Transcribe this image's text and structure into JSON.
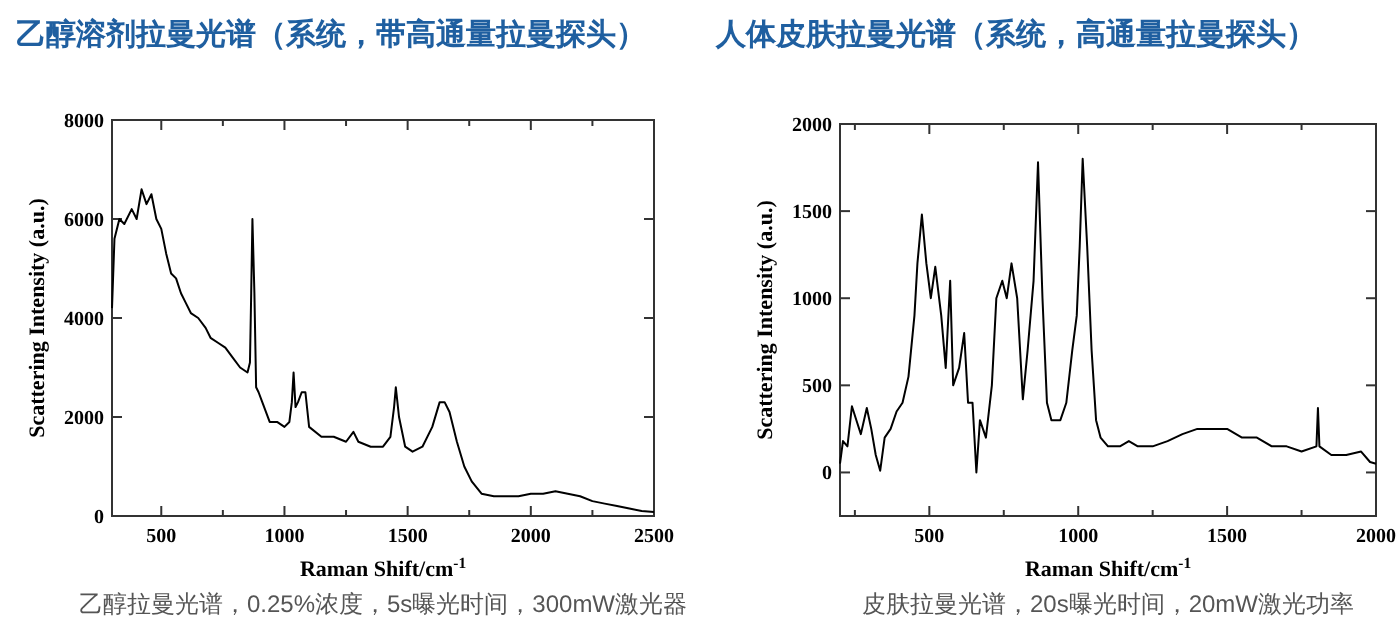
{
  "chart_data": [
    {
      "type": "line",
      "title": "乙醇溶剂拉曼光谱（系统，带高通量拉曼探头）",
      "xlabel": "Raman Shift/cm$^{-1}$",
      "ylabel": "Scattering Intensity (a.u.)",
      "annotations": [
        "乙醇拉曼光谱，0.25%浓度，5s曝光时间，300mW激光器"
      ],
      "xlim": [
        300,
        2500
      ],
      "ylim": [
        0,
        8000
      ],
      "xticks": [
        500,
        1000,
        1500,
        2000,
        2500,
        {
          "value": 750,
          "label": null
        },
        {
          "value": 1250,
          "label": null
        },
        {
          "value": 1750,
          "label": null
        },
        {
          "value": 2250,
          "label": null
        }
      ],
      "yticks": [
        0,
        2000,
        4000,
        6000,
        8000
      ],
      "x": [
        300,
        310,
        330,
        350,
        380,
        400,
        420,
        440,
        460,
        480,
        500,
        520,
        540,
        560,
        580,
        600,
        620,
        650,
        680,
        700,
        730,
        760,
        790,
        820,
        850,
        860,
        865,
        870,
        878,
        885,
        895,
        910,
        940,
        970,
        1000,
        1020,
        1030,
        1037,
        1045,
        1055,
        1070,
        1085,
        1100,
        1150,
        1200,
        1250,
        1280,
        1300,
        1350,
        1400,
        1430,
        1445,
        1452,
        1465,
        1490,
        1520,
        1560,
        1600,
        1630,
        1650,
        1670,
        1700,
        1730,
        1760,
        1800,
        1850,
        1900,
        1950,
        2000,
        2050,
        2100,
        2150,
        2200,
        2250,
        2300,
        2350,
        2400,
        2450,
        2500
      ],
      "series": [
        {
          "color": "#000000",
          "values": [
            4200,
            5600,
            6000,
            5900,
            6200,
            6000,
            6600,
            6300,
            6500,
            6000,
            5800,
            5300,
            4900,
            4800,
            4500,
            4300,
            4100,
            4000,
            3800,
            3600,
            3500,
            3400,
            3200,
            3000,
            2900,
            3100,
            4500,
            6000,
            4500,
            2600,
            2500,
            2300,
            1900,
            1900,
            1800,
            1900,
            2300,
            2900,
            2200,
            2300,
            2500,
            2500,
            1800,
            1600,
            1600,
            1500,
            1700,
            1500,
            1400,
            1400,
            1600,
            2200,
            2600,
            2000,
            1400,
            1300,
            1400,
            1800,
            2300,
            2300,
            2100,
            1500,
            1000,
            700,
            450,
            400,
            400,
            400,
            450,
            450,
            500,
            450,
            400,
            300,
            250,
            200,
            150,
            100,
            80
          ]
        }
      ]
    },
    {
      "type": "line",
      "title": "人体皮肤拉曼光谱（系统，高通量拉曼探头）",
      "xlabel": "Raman Shift/cm$^{-1}$",
      "ylabel": "Scattering Intensity (a.u.)",
      "annotations": [
        "皮肤拉曼光谱，20s曝光时间，20mW激光功率"
      ],
      "xlim": [
        200,
        2000
      ],
      "ylim": [
        -250,
        2000
      ],
      "xticks": [
        500,
        1000,
        1500,
        2000,
        {
          "value": 250,
          "label": null
        },
        {
          "value": 750,
          "label": null
        },
        {
          "value": 1250,
          "label": null
        },
        {
          "value": 1750,
          "label": null
        }
      ],
      "yticks": [
        0,
        500,
        1000,
        1500,
        2000
      ],
      "x": [
        200,
        210,
        225,
        240,
        255,
        270,
        290,
        305,
        320,
        335,
        350,
        370,
        390,
        410,
        430,
        450,
        460,
        475,
        490,
        505,
        520,
        540,
        555,
        570,
        580,
        600,
        617,
        630,
        645,
        658,
        670,
        690,
        710,
        725,
        745,
        760,
        776,
        795,
        814,
        830,
        850,
        865,
        880,
        895,
        910,
        940,
        960,
        980,
        995,
        1005,
        1015,
        1030,
        1045,
        1060,
        1075,
        1100,
        1140,
        1170,
        1200,
        1250,
        1300,
        1350,
        1400,
        1450,
        1500,
        1550,
        1600,
        1650,
        1700,
        1750,
        1800,
        1805,
        1810,
        1850,
        1900,
        1950,
        1980,
        2000
      ],
      "series": [
        {
          "color": "#000000",
          "values": [
            50,
            180,
            150,
            380,
            300,
            220,
            370,
            250,
            100,
            10,
            200,
            250,
            350,
            400,
            550,
            900,
            1200,
            1480,
            1200,
            1000,
            1180,
            900,
            600,
            1100,
            500,
            600,
            800,
            400,
            400,
            0,
            300,
            200,
            500,
            1000,
            1100,
            1000,
            1200,
            1000,
            420,
            700,
            1100,
            1780,
            1000,
            400,
            300,
            300,
            400,
            700,
            900,
            1300,
            1800,
            1300,
            700,
            300,
            200,
            150,
            150,
            180,
            150,
            150,
            180,
            220,
            250,
            250,
            250,
            200,
            200,
            150,
            150,
            120,
            150,
            370,
            150,
            100,
            100,
            120,
            60,
            50
          ]
        }
      ]
    }
  ]
}
